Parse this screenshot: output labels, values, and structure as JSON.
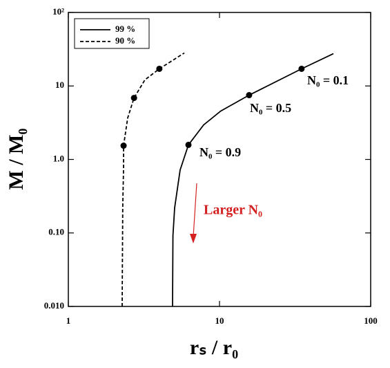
{
  "chart_data": {
    "type": "line",
    "x_label": "rₛ / r₀",
    "y_label": "M / M₀",
    "xlog": true,
    "ylog": true,
    "xlim": [
      1,
      100
    ],
    "ylim": [
      0.01,
      100
    ],
    "xticks": [
      1,
      10,
      100
    ],
    "yticks": [
      {
        "value": 0.01,
        "label": "0.010"
      },
      {
        "value": 0.1,
        "label": "0.10"
      },
      {
        "value": 1,
        "label": "1.0"
      },
      10,
      {
        "value": 100,
        "label": "10²"
      }
    ],
    "legend": "top-left",
    "series": [
      {
        "name": "99 %",
        "color": "#000000",
        "dash": false,
        "x": [
          4.89,
          4.92,
          5.05,
          5.49,
          6.23,
          7.85,
          10.2,
          15.7,
          34.9,
          56.7
        ],
        "values": [
          0.01,
          0.092,
          0.22,
          0.72,
          1.58,
          2.95,
          4.56,
          7.5,
          17.1,
          27.5
        ],
        "markers": {
          "x": [
            6.23,
            15.7,
            34.9
          ],
          "values": [
            1.58,
            7.5,
            17.1
          ]
        }
      },
      {
        "name": "90 %",
        "color": "#000000",
        "dash": true,
        "x": [
          2.27,
          2.29,
          2.32,
          2.32,
          2.47,
          2.72,
          3.21,
          4.0,
          5.85
        ],
        "values": [
          0.01,
          0.22,
          0.8,
          1.54,
          3.67,
          6.87,
          12.1,
          17.1,
          28.1
        ],
        "markers": {
          "x": [
            2.32,
            2.72,
            4.0
          ],
          "values": [
            1.54,
            6.87,
            17.1
          ]
        }
      }
    ],
    "annotations": [
      {
        "text": "N₀ = 0.1",
        "color": "#000000"
      },
      {
        "text": "N₀ = 0.5",
        "color": "#000000"
      },
      {
        "text": "N₀ = 0.9",
        "color": "#000000"
      },
      {
        "text": "Larger N₀",
        "color": "#d42020"
      }
    ]
  }
}
